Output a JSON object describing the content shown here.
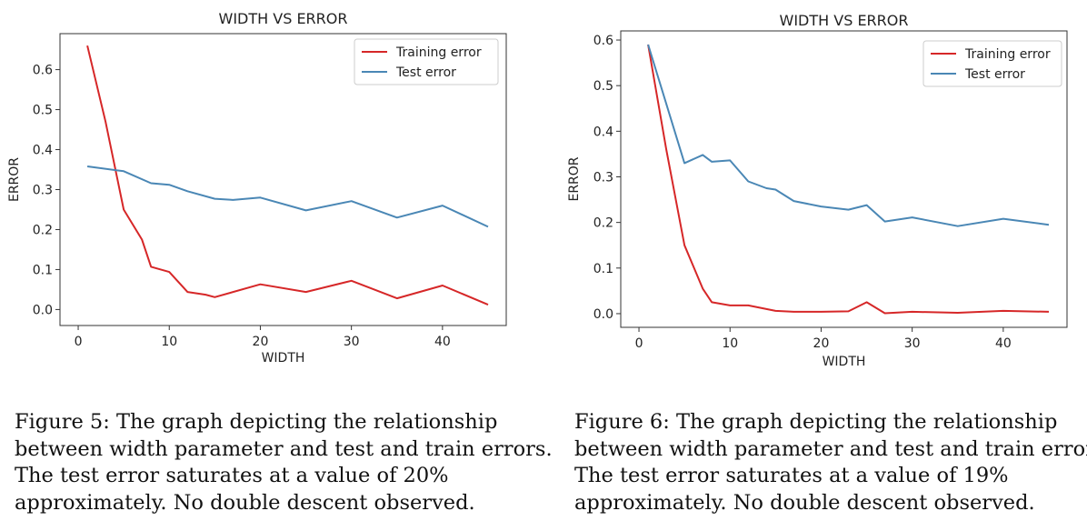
{
  "chart_data": [
    {
      "type": "line",
      "title": "WIDTH VS ERROR",
      "xlabel": "WIDTH",
      "ylabel": "ERROR",
      "xlim": [
        -2,
        47
      ],
      "ylim": [
        -0.04,
        0.69
      ],
      "xticks": [
        0,
        10,
        20,
        30,
        40
      ],
      "xtick_labels": [
        "0",
        "10",
        "20",
        "30",
        "40"
      ],
      "yticks": [
        0.0,
        0.1,
        0.2,
        0.3,
        0.4,
        0.5,
        0.6
      ],
      "ytick_labels": [
        "0.0",
        "0.1",
        "0.2",
        "0.3",
        "0.4",
        "0.5",
        "0.6"
      ],
      "grid": false,
      "legend_position": "top-right",
      "series": [
        {
          "name": "Training error",
          "color": "#d62728",
          "x": [
            1,
            3,
            5,
            7,
            8,
            10,
            12,
            14,
            15,
            20,
            25,
            30,
            35,
            40,
            45
          ],
          "y": [
            0.66,
            0.47,
            0.25,
            0.175,
            0.107,
            0.094,
            0.044,
            0.037,
            0.031,
            0.063,
            0.044,
            0.072,
            0.028,
            0.06,
            0.012
          ]
        },
        {
          "name": "Test error",
          "color": "#4a87b5",
          "x": [
            1,
            5,
            8,
            10,
            12,
            15,
            17,
            20,
            25,
            30,
            35,
            40,
            45
          ],
          "y": [
            0.358,
            0.346,
            0.316,
            0.312,
            0.296,
            0.277,
            0.274,
            0.28,
            0.248,
            0.271,
            0.23,
            0.26,
            0.207
          ]
        }
      ]
    },
    {
      "type": "line",
      "title": "WIDTH VS ERROR",
      "xlabel": "WIDTH",
      "ylabel": "ERROR",
      "xlim": [
        -2,
        47
      ],
      "ylim": [
        -0.03,
        0.62
      ],
      "xticks": [
        0,
        10,
        20,
        30,
        40
      ],
      "xtick_labels": [
        "0",
        "10",
        "20",
        "30",
        "40"
      ],
      "yticks": [
        0.0,
        0.1,
        0.2,
        0.3,
        0.4,
        0.5,
        0.6
      ],
      "ytick_labels": [
        "0.0",
        "0.1",
        "0.2",
        "0.3",
        "0.4",
        "0.5",
        "0.6"
      ],
      "grid": false,
      "legend_position": "top-right",
      "series": [
        {
          "name": "Training error",
          "color": "#d62728",
          "x": [
            1,
            3,
            5,
            7,
            8,
            10,
            12,
            15,
            17,
            20,
            23,
            25,
            27,
            30,
            35,
            40,
            45
          ],
          "y": [
            0.59,
            0.36,
            0.15,
            0.055,
            0.025,
            0.018,
            0.018,
            0.006,
            0.004,
            0.004,
            0.005,
            0.025,
            0.001,
            0.004,
            0.002,
            0.006,
            0.004
          ]
        },
        {
          "name": "Test error",
          "color": "#4a87b5",
          "x": [
            1,
            3,
            5,
            7,
            8,
            10,
            12,
            14,
            15,
            17,
            20,
            23,
            25,
            27,
            30,
            35,
            40,
            45
          ],
          "y": [
            0.59,
            0.46,
            0.33,
            0.348,
            0.333,
            0.336,
            0.29,
            0.275,
            0.272,
            0.247,
            0.235,
            0.228,
            0.238,
            0.202,
            0.211,
            0.192,
            0.208,
            0.195
          ]
        }
      ]
    }
  ],
  "captions": [
    {
      "lines": [
        "Figure 5: The graph depicting the relationship",
        "between width parameter and test and train errors.",
        "The test error saturates at a value of 20%",
        "approximately. No double descent observed."
      ]
    },
    {
      "lines": [
        "Figure 6: The graph depicting the relationship",
        "between width parameter and test and train errors.",
        "The test error saturates at a value of 19%",
        "approximately. No double descent observed."
      ]
    }
  ]
}
